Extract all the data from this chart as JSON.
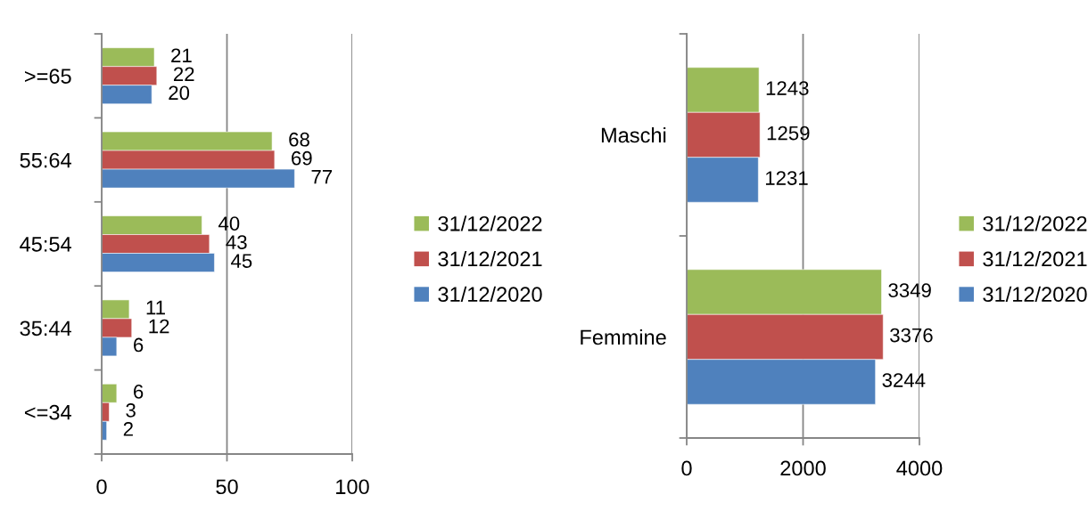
{
  "chart_data": [
    {
      "type": "bar",
      "orientation": "horizontal",
      "categories": [
        ">=65",
        "55:64",
        "45:54",
        "35:44",
        "<=34"
      ],
      "series": [
        {
          "name": "31/12/2022",
          "color": "#9bbb59",
          "values": [
            21,
            68,
            40,
            11,
            6
          ]
        },
        {
          "name": "31/12/2021",
          "color": "#c0504d",
          "values": [
            22,
            69,
            43,
            12,
            3
          ]
        },
        {
          "name": "31/12/2020",
          "color": "#4f81bd",
          "values": [
            20,
            77,
            45,
            6,
            2
          ]
        }
      ],
      "xlim": [
        0,
        100
      ],
      "xticks": [
        0,
        50,
        100
      ],
      "grid": "x",
      "legend": "right",
      "data_labels": true
    },
    {
      "type": "bar",
      "orientation": "horizontal",
      "categories": [
        "Maschi",
        "Femmine"
      ],
      "series": [
        {
          "name": "31/12/2022",
          "color": "#9bbb59",
          "values": [
            1243,
            3349
          ]
        },
        {
          "name": "31/12/2021",
          "color": "#c0504d",
          "values": [
            1259,
            3376
          ]
        },
        {
          "name": "31/12/2020",
          "color": "#4f81bd",
          "values": [
            1231,
            3244
          ]
        }
      ],
      "xlim": [
        0,
        4000
      ],
      "xticks": [
        0,
        2000,
        4000
      ],
      "grid": "x",
      "legend": "right",
      "data_labels": true
    }
  ]
}
